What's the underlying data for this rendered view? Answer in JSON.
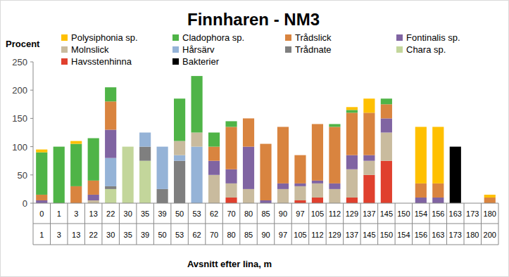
{
  "chart_data": {
    "type": "bar",
    "stacked": true,
    "title": "Finnharen - NM3",
    "y_label": "Procent",
    "x_label": "Avsnitt efter lina, m",
    "categories": [
      [
        "0",
        "1"
      ],
      [
        "1",
        "3"
      ],
      [
        "3",
        "13"
      ],
      [
        "13",
        "22"
      ],
      [
        "22",
        "30"
      ],
      [
        "30",
        "35"
      ],
      [
        "35",
        "39"
      ],
      [
        "39",
        "50"
      ],
      [
        "50",
        "53"
      ],
      [
        "53",
        "62"
      ],
      [
        "62",
        "70"
      ],
      [
        "70",
        "80"
      ],
      [
        "80",
        "85"
      ],
      [
        "85",
        "90"
      ],
      [
        "90",
        "97"
      ],
      [
        "97",
        "105"
      ],
      [
        "105",
        "112"
      ],
      [
        "112",
        "129"
      ],
      [
        "129",
        "137"
      ],
      [
        "137",
        "145"
      ],
      [
        "145",
        "150"
      ],
      [
        "150",
        "154"
      ],
      [
        "154",
        "156"
      ],
      [
        "156",
        "163"
      ],
      [
        "163",
        "173"
      ],
      [
        "173",
        "180"
      ],
      [
        "180",
        "200"
      ]
    ],
    "series": [
      {
        "name": "Polysiphonia sp.",
        "color": "#ffc000",
        "values": [
          5,
          0,
          5,
          0,
          0,
          0,
          0,
          0,
          0,
          0,
          0,
          0,
          0,
          0,
          0,
          0,
          0,
          0,
          5,
          25,
          0,
          0,
          100,
          100,
          0,
          0,
          5
        ]
      },
      {
        "name": "Cladophora sp.",
        "color": "#4fb447",
        "values": [
          75,
          100,
          75,
          75,
          25,
          0,
          0,
          0,
          75,
          100,
          25,
          10,
          0,
          0,
          0,
          0,
          0,
          5,
          5,
          0,
          10,
          0,
          0,
          0,
          0,
          0,
          0
        ]
      },
      {
        "name": "Trådslick",
        "color": "#d9843f",
        "values": [
          10,
          0,
          30,
          25,
          50,
          0,
          0,
          0,
          0,
          0,
          25,
          75,
          50,
          100,
          100,
          50,
          100,
          100,
          75,
          75,
          25,
          0,
          25,
          25,
          0,
          0,
          10
        ]
      },
      {
        "name": "Fontinalis sp.",
        "color": "#8064a2",
        "values": [
          5,
          0,
          0,
          10,
          50,
          0,
          0,
          0,
          0,
          0,
          25,
          25,
          75,
          5,
          10,
          5,
          5,
          10,
          25,
          10,
          25,
          0,
          10,
          10,
          0,
          0,
          0
        ]
      },
      {
        "name": "Molnslick",
        "color": "#c9bb9e",
        "values": [
          0,
          0,
          0,
          5,
          0,
          0,
          0,
          0,
          25,
          25,
          50,
          25,
          25,
          0,
          25,
          25,
          25,
          25,
          50,
          25,
          50,
          0,
          0,
          0,
          0,
          0,
          0
        ]
      },
      {
        "name": "Hårsärv",
        "color": "#95b3d7",
        "values": [
          0,
          0,
          0,
          0,
          50,
          0,
          25,
          75,
          10,
          100,
          0,
          0,
          0,
          0,
          0,
          0,
          0,
          0,
          0,
          0,
          0,
          0,
          0,
          0,
          0,
          0,
          0
        ]
      },
      {
        "name": "Trådnate",
        "color": "#7f7f7f",
        "values": [
          0,
          0,
          0,
          0,
          5,
          0,
          25,
          25,
          75,
          0,
          0,
          0,
          0,
          0,
          0,
          0,
          0,
          0,
          0,
          0,
          0,
          0,
          0,
          0,
          0,
          0,
          0
        ]
      },
      {
        "name": "Chara sp.",
        "color": "#c3d69b",
        "values": [
          0,
          0,
          0,
          0,
          25,
          100,
          75,
          0,
          0,
          0,
          0,
          0,
          0,
          0,
          0,
          0,
          0,
          0,
          0,
          0,
          0,
          0,
          0,
          0,
          0,
          0,
          0
        ]
      },
      {
        "name": "Havsstenhinna",
        "color": "#e0402e",
        "values": [
          0,
          0,
          0,
          0,
          0,
          0,
          0,
          0,
          0,
          0,
          0,
          10,
          0,
          0,
          0,
          5,
          10,
          0,
          10,
          50,
          75,
          0,
          0,
          0,
          0,
          0,
          0
        ]
      },
      {
        "name": "Bakterier",
        "color": "#000000",
        "values": [
          0,
          0,
          0,
          0,
          0,
          0,
          0,
          0,
          0,
          0,
          0,
          0,
          0,
          0,
          0,
          0,
          0,
          0,
          0,
          0,
          0,
          0,
          0,
          0,
          100,
          0,
          0
        ]
      }
    ],
    "ylim": [
      0,
      250
    ],
    "yticks": [
      0,
      50,
      100,
      150,
      200,
      250
    ],
    "grid": false,
    "legend": "top-left"
  }
}
